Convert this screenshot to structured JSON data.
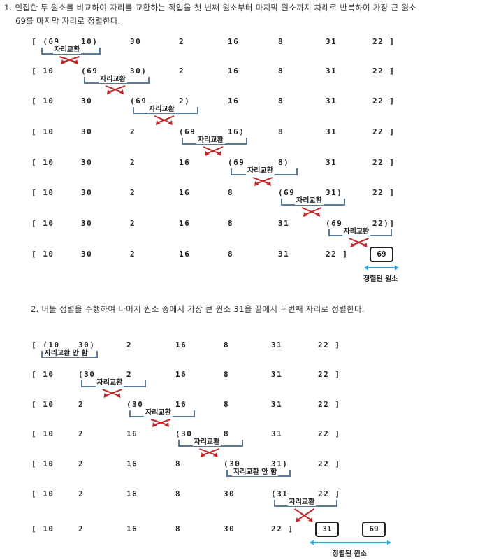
{
  "intro": {
    "line1": "1. 인접한 두 원소를 비교하여 자리를 교환하는 작업을 첫 번째 원소부터 마지막 원소까지 차례로 반복하여 가장 큰 원소",
    "line2": "69를 마지막 자리로 정렬한다."
  },
  "section2_heading": "2. 버블 정렬을 수행하여 나머지 원소 중에서 가장 큰 원소 31을 끝에서 두번째 자리로 정렬한다.",
  "colors": {
    "swap_arrow": "#c0282a",
    "sorted_arrow": "#29a8e0",
    "bracket": "#5a7a9a"
  },
  "sections": [
    {
      "rows": [
        [
          "[ (69",
          "10)",
          "30",
          "2",
          "16",
          "8",
          "31",
          "22 ]"
        ],
        [
          "[ 10",
          "(69",
          "30)",
          "2",
          "16",
          "8",
          "31",
          "22 ]"
        ],
        [
          "[ 10",
          "30",
          "(69",
          "2)",
          "16",
          "8",
          "31",
          "22 ]"
        ],
        [
          "[ 10",
          "30",
          "2",
          "(69",
          "16)",
          "8",
          "31",
          "22 ]"
        ],
        [
          "[ 10",
          "30",
          "2",
          "16",
          "(69",
          "8)",
          "31",
          "22 ]"
        ],
        [
          "[ 10",
          "30",
          "2",
          "16",
          "8",
          "(69",
          "31)",
          "22 ]"
        ],
        [
          "[ 10",
          "30",
          "2",
          "16",
          "8",
          "31",
          "(69",
          "22)]"
        ],
        [
          "[ 10",
          "30",
          "2",
          "16",
          "8",
          "31",
          "22 ]",
          ""
        ]
      ],
      "swaps": [
        {
          "label": "자리교환",
          "swapped": true
        },
        {
          "label": "자리교환",
          "swapped": true
        },
        {
          "label": "자리교환",
          "swapped": true
        },
        {
          "label": "자리교환",
          "swapped": true
        },
        {
          "label": "자리교환",
          "swapped": true
        },
        {
          "label": "자리교환",
          "swapped": true
        },
        {
          "label": "자리교환",
          "swapped": true
        }
      ],
      "sorted": [
        "69"
      ],
      "sorted_label": "정렬된 원소"
    },
    {
      "rows": [
        [
          "[ (10",
          "30)",
          "2",
          "16",
          "8",
          "31",
          "22 ]",
          ""
        ],
        [
          "[ 10",
          "(30",
          "2",
          "16",
          "8",
          "31",
          "22 ]",
          ""
        ],
        [
          "[ 10",
          "2",
          "(30",
          "16",
          "8",
          "31",
          "22 ]",
          ""
        ],
        [
          "[ 10",
          "2",
          "16",
          "(30",
          "8",
          "31",
          "22 ]",
          ""
        ],
        [
          "[ 10",
          "2",
          "16",
          "8",
          "(30",
          "31)",
          "22 ]",
          ""
        ],
        [
          "[ 10",
          "2",
          "16",
          "8",
          "30",
          "(31",
          "22 ]",
          ""
        ],
        [
          "[ 10",
          "2",
          "16",
          "8",
          "30",
          "22 ]",
          "",
          ""
        ]
      ],
      "swaps": [
        {
          "label": "자리교환 안 함",
          "swapped": false
        },
        {
          "label": "자리교환",
          "swapped": true
        },
        {
          "label": "자리교환",
          "swapped": true
        },
        {
          "label": "자리교환",
          "swapped": true
        },
        {
          "label": "자리교환 안 함",
          "swapped": false
        },
        {
          "label": "자리교환",
          "swapped": true
        }
      ],
      "sorted": [
        "31",
        "69"
      ],
      "sorted_label": "정렬된 원소"
    }
  ]
}
